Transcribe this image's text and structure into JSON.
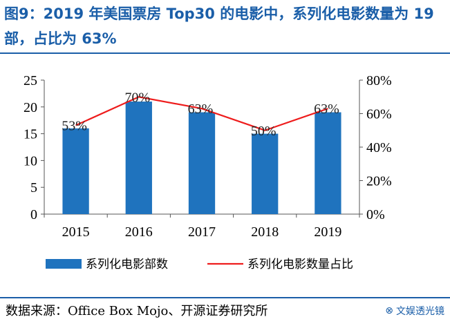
{
  "title": "图9：2019 年美国票房 Top30 的电影中，系列化电影数量为 19 部，占比为 63%",
  "chart_data": {
    "type": "bar",
    "categories": [
      "2015",
      "2016",
      "2017",
      "2018",
      "2019"
    ],
    "series": [
      {
        "name": "系列化电影部数",
        "type": "bar",
        "axis": "left",
        "values": [
          16,
          21,
          19,
          15,
          19
        ]
      },
      {
        "name": "系列化电影数量占比",
        "type": "line",
        "axis": "right",
        "values": [
          53,
          70,
          63,
          50,
          63
        ]
      }
    ],
    "data_labels": [
      "53%",
      "70%",
      "63%",
      "50%",
      "63%"
    ],
    "y_left": {
      "min": 0,
      "max": 25,
      "ticks": [
        "0",
        "5",
        "10",
        "15",
        "20",
        "25"
      ]
    },
    "y_right": {
      "min": 0,
      "max": 80,
      "ticks": [
        "0%",
        "20%",
        "40%",
        "60%",
        "80%"
      ]
    },
    "legend_position": "bottom",
    "colors": {
      "bar": "#1f73be",
      "line": "#ee1c1c"
    }
  },
  "source": "数据来源：Office Box Mojo、开源证券研究所",
  "watermark": "文娱透光镜"
}
